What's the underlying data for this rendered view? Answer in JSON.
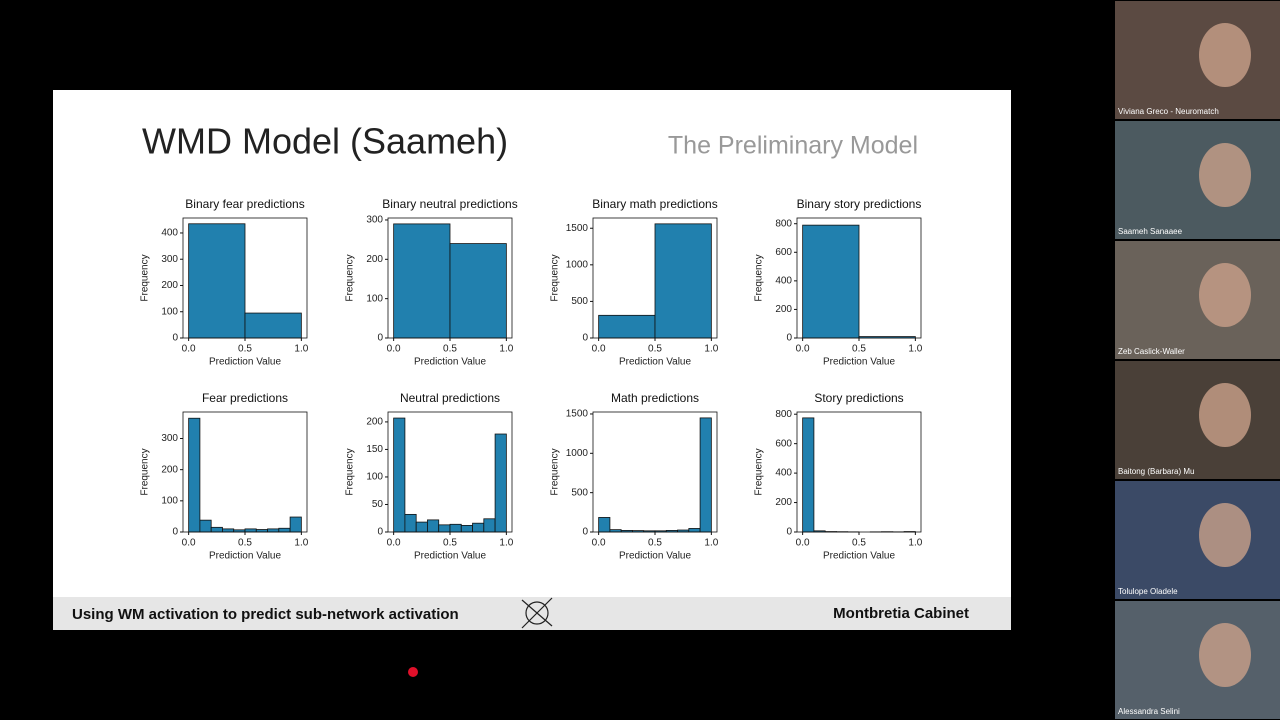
{
  "slide": {
    "title": "WMD Model (Saameh)",
    "subtitle": "The Preliminary Model",
    "footer_left": "Using WM activation to predict sub-network activation",
    "footer_right": "Montbretia Cabinet"
  },
  "participants": [
    "Viviana Greco - Neuromatch",
    "Saameh Sanaaee",
    "Zeb Caslick-Waller",
    "Baitong (Barbara) Mu",
    "Tolulope Oladele",
    "Alessandra Selini"
  ],
  "chart_data": [
    {
      "type": "histogram",
      "title": "Binary fear predictions",
      "xlabel": "Prediction Value",
      "ylabel": "Frequency",
      "color": "#2180ae",
      "bins": [
        0,
        0.5,
        1
      ],
      "values": [
        435,
        95
      ],
      "xlim": [
        -0.05,
        1.05
      ],
      "ylim": [
        0,
        457
      ],
      "xticks": [
        {
          "value": 0,
          "label": "0.0"
        },
        0.5,
        {
          "value": 1,
          "label": "1.0"
        }
      ],
      "yticks": [
        0,
        100,
        200,
        300,
        400
      ]
    },
    {
      "type": "histogram",
      "title": "Binary neutral predictions",
      "xlabel": "Prediction Value",
      "ylabel": "Frequency",
      "color": "#2180ae",
      "bins": [
        0,
        0.5,
        1
      ],
      "values": [
        290,
        240
      ],
      "xlim": [
        -0.05,
        1.05
      ],
      "ylim": [
        0,
        305
      ],
      "xticks": [
        {
          "value": 0,
          "label": "0.0"
        },
        0.5,
        {
          "value": 1,
          "label": "1.0"
        }
      ],
      "yticks": [
        0,
        100,
        200,
        300
      ]
    },
    {
      "type": "histogram",
      "title": "Binary math predictions",
      "xlabel": "Prediction Value",
      "ylabel": "Frequency",
      "color": "#2180ae",
      "bins": [
        0,
        0.5,
        1
      ],
      "values": [
        310,
        1560
      ],
      "xlim": [
        -0.05,
        1.05
      ],
      "ylim": [
        0,
        1640
      ],
      "xticks": [
        {
          "value": 0,
          "label": "0.0"
        },
        0.5,
        {
          "value": 1,
          "label": "1.0"
        }
      ],
      "yticks": [
        0,
        500,
        1000,
        1500
      ]
    },
    {
      "type": "histogram",
      "title": "Binary story predictions",
      "xlabel": "Prediction Value",
      "ylabel": "Frequency",
      "color": "#2180ae",
      "bins": [
        0,
        0.5,
        1
      ],
      "values": [
        790,
        10
      ],
      "xlim": [
        -0.05,
        1.05
      ],
      "ylim": [
        0,
        840
      ],
      "xticks": [
        {
          "value": 0,
          "label": "0.0"
        },
        0.5,
        {
          "value": 1,
          "label": "1.0"
        }
      ],
      "yticks": [
        0,
        200,
        400,
        600,
        800
      ]
    },
    {
      "type": "histogram",
      "title": "Fear predictions",
      "xlabel": "Prediction Value",
      "ylabel": "Frequency",
      "color": "#2180ae",
      "bins": [
        0,
        0.1,
        0.2,
        0.3,
        0.4,
        0.5,
        0.6,
        0.7,
        0.8,
        0.9,
        1
      ],
      "values": [
        365,
        38,
        15,
        10,
        7,
        10,
        8,
        10,
        12,
        48
      ],
      "xlim": [
        -0.05,
        1.05
      ],
      "ylim": [
        0,
        385
      ],
      "xticks": [
        {
          "value": 0,
          "label": "0.0"
        },
        0.5,
        {
          "value": 1,
          "label": "1.0"
        }
      ],
      "yticks": [
        0,
        100,
        200,
        300
      ]
    },
    {
      "type": "histogram",
      "title": "Neutral predictions",
      "xlabel": "Prediction Value",
      "ylabel": "Frequency",
      "color": "#2180ae",
      "bins": [
        0,
        0.1,
        0.2,
        0.3,
        0.4,
        0.5,
        0.6,
        0.7,
        0.8,
        0.9,
        1
      ],
      "values": [
        207,
        32,
        18,
        22,
        13,
        14,
        12,
        16,
        24,
        178
      ],
      "xlim": [
        -0.05,
        1.05
      ],
      "ylim": [
        0,
        218
      ],
      "xticks": [
        {
          "value": 0,
          "label": "0.0"
        },
        0.5,
        {
          "value": 1,
          "label": "1.0"
        }
      ],
      "yticks": [
        0,
        50,
        100,
        150,
        200
      ]
    },
    {
      "type": "histogram",
      "title": "Math predictions",
      "xlabel": "Prediction Value",
      "ylabel": "Frequency",
      "color": "#2180ae",
      "bins": [
        0,
        0.1,
        0.2,
        0.3,
        0.4,
        0.5,
        0.6,
        0.7,
        0.8,
        0.9,
        1
      ],
      "values": [
        185,
        30,
        20,
        18,
        15,
        15,
        20,
        25,
        45,
        1450
      ],
      "xlim": [
        -0.05,
        1.05
      ],
      "ylim": [
        0,
        1525
      ],
      "xticks": [
        {
          "value": 0,
          "label": "0.0"
        },
        0.5,
        {
          "value": 1,
          "label": "1.0"
        }
      ],
      "yticks": [
        0,
        500,
        1000,
        1500
      ]
    },
    {
      "type": "histogram",
      "title": "Story predictions",
      "xlabel": "Prediction Value",
      "ylabel": "Frequency",
      "color": "#2180ae",
      "bins": [
        0,
        0.1,
        0.2,
        0.3,
        0.4,
        0.5,
        0.6,
        0.7,
        0.8,
        0.9,
        1
      ],
      "values": [
        775,
        8,
        3,
        2,
        1,
        0,
        1,
        2,
        1,
        3
      ],
      "xlim": [
        -0.05,
        1.05
      ],
      "ylim": [
        0,
        815
      ],
      "xticks": [
        {
          "value": 0,
          "label": "0.0"
        },
        0.5,
        {
          "value": 1,
          "label": "1.0"
        }
      ],
      "yticks": [
        0,
        200,
        400,
        600,
        800
      ]
    }
  ]
}
